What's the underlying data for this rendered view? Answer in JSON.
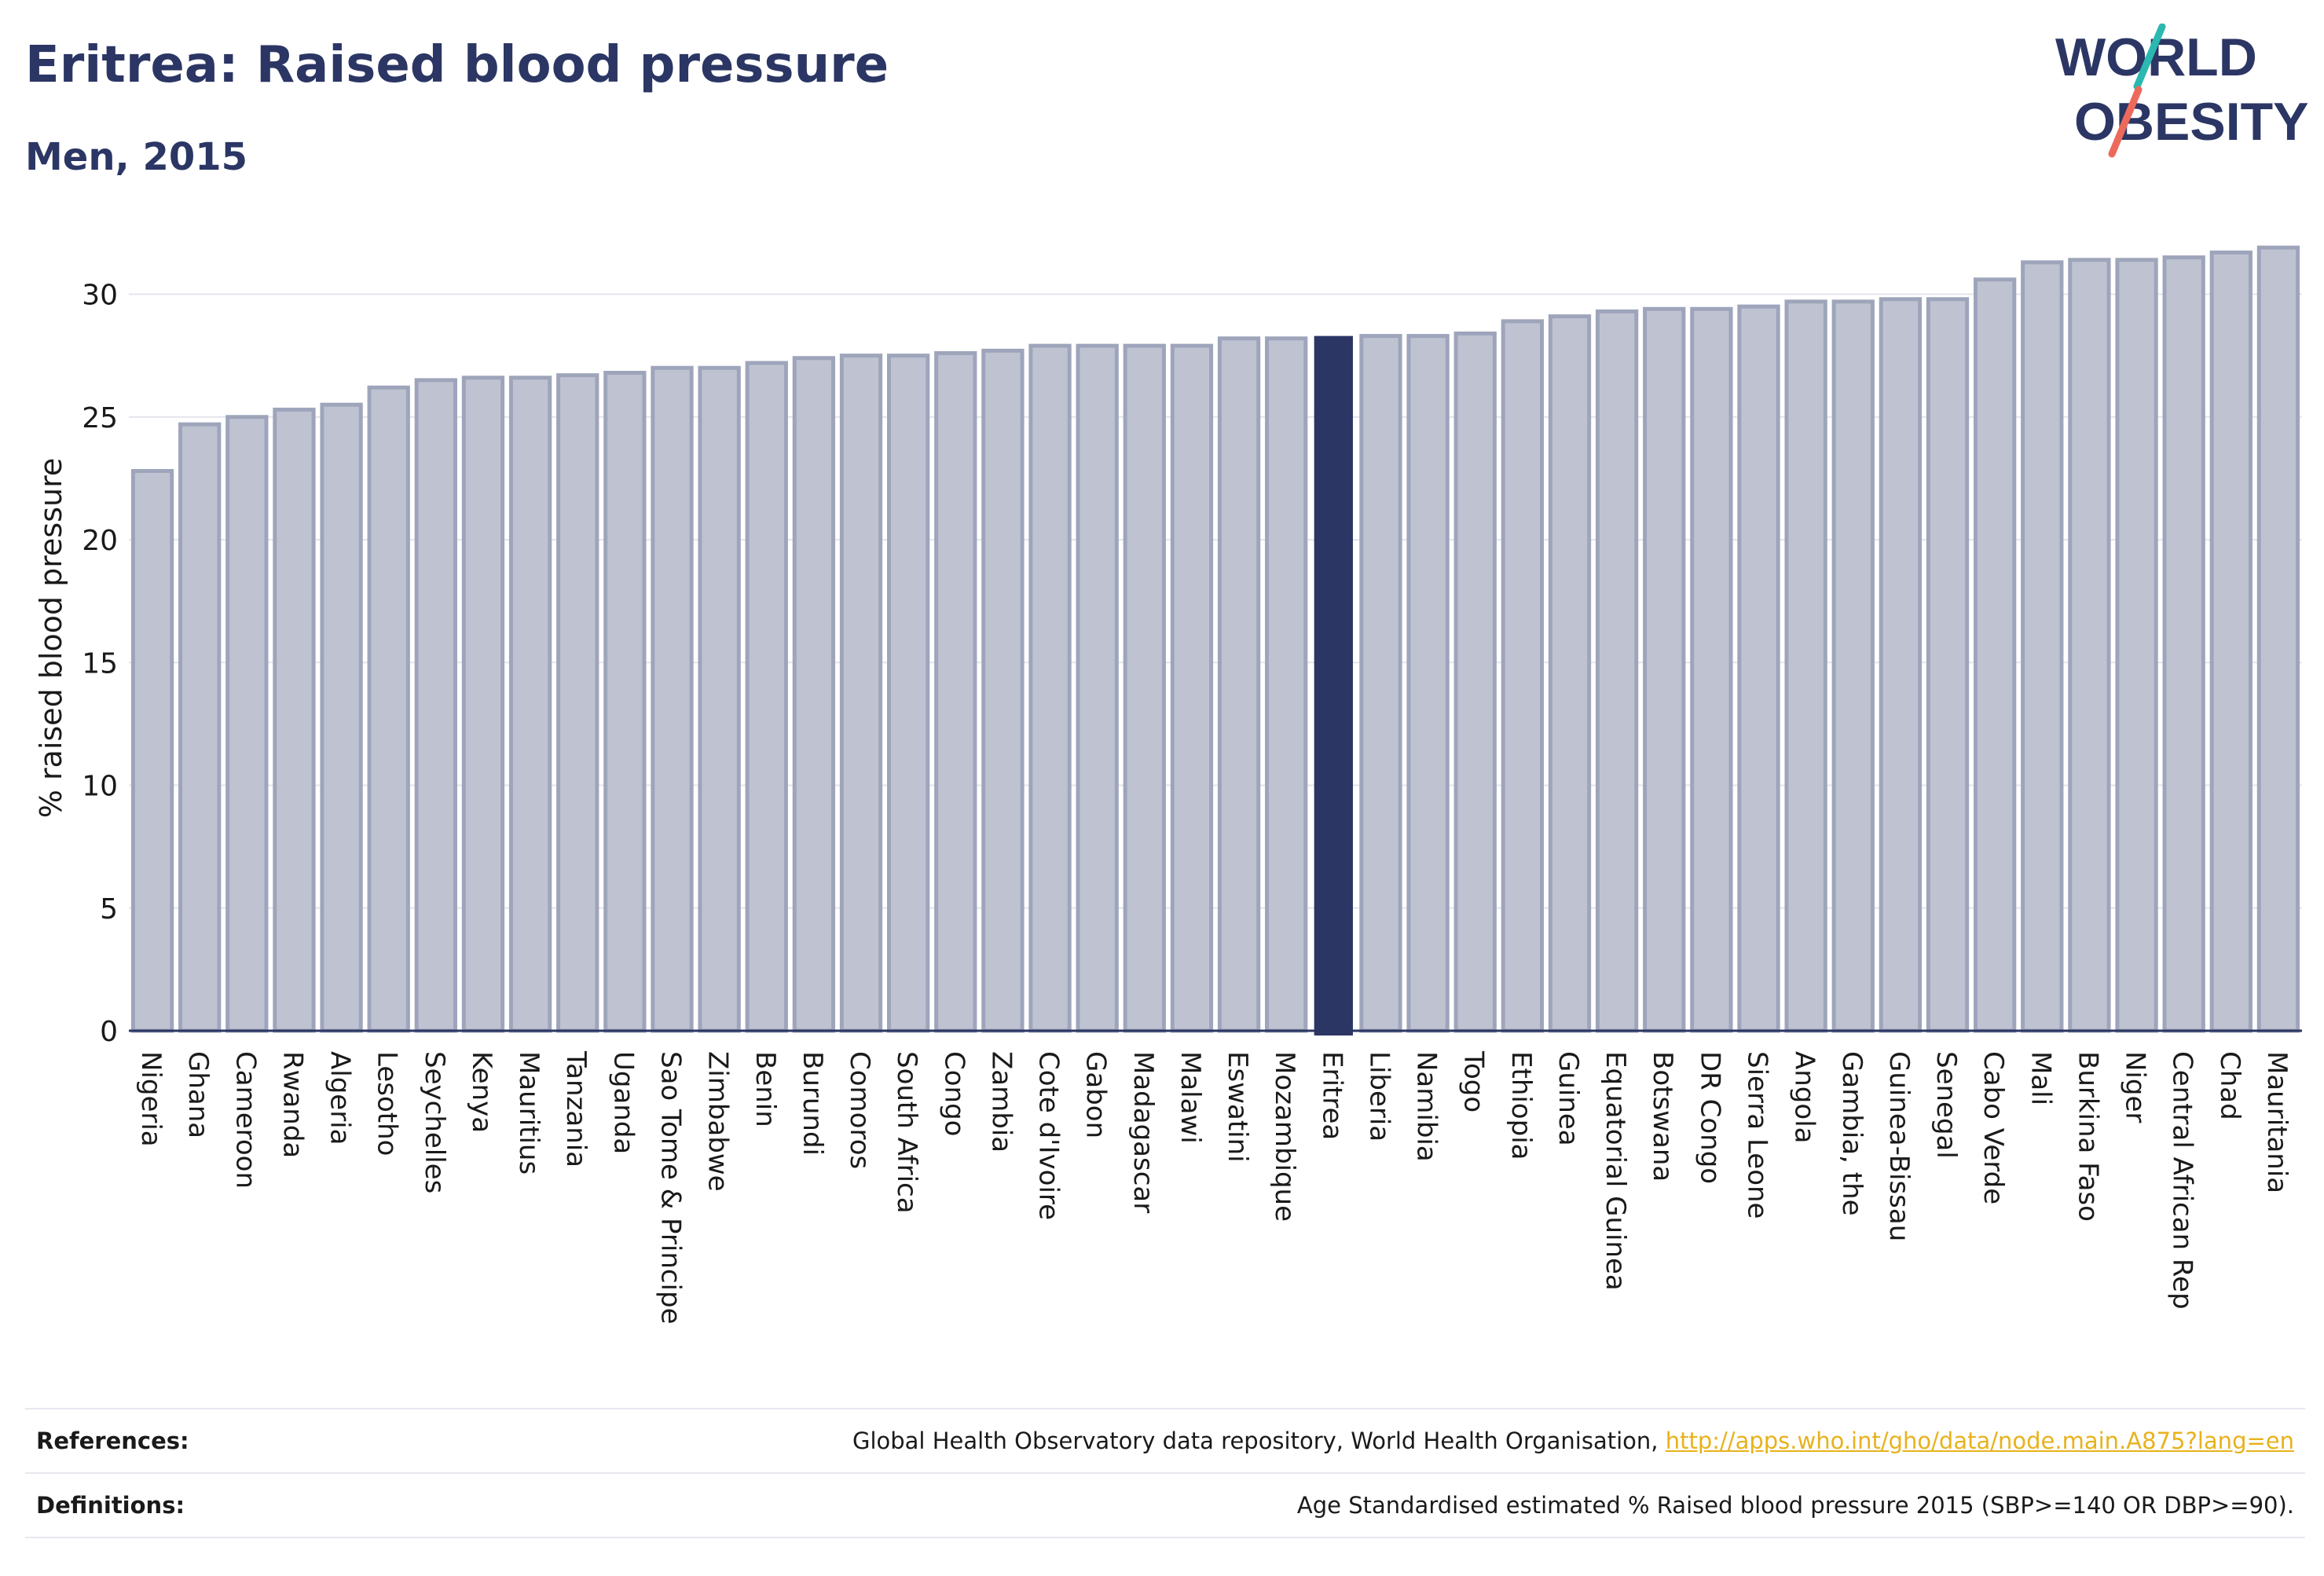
{
  "header": {
    "title": "Eritrea: Raised blood pressure",
    "subtitle": "Men, 2015"
  },
  "logo": {
    "line1": "WORLD",
    "line2": "OBESITY",
    "icon": "world-obesity-logo"
  },
  "chart_data": {
    "type": "bar",
    "ylabel": "% raised blood pressure",
    "ylim": [
      0,
      32
    ],
    "yticks": [
      0,
      5,
      10,
      15,
      20,
      25,
      30
    ],
    "grid": true,
    "highlight": "Eritrea",
    "colors": {
      "bar": "#bfc3d1",
      "bar_stroke": "#9ea5bb",
      "highlight": "#2b3664",
      "axis": "#2b3664",
      "grid": "#e3e5eb"
    },
    "categories": [
      "Nigeria",
      "Ghana",
      "Cameroon",
      "Rwanda",
      "Algeria",
      "Lesotho",
      "Seychelles",
      "Kenya",
      "Mauritius",
      "Tanzania",
      "Uganda",
      "Sao Tome & Principe",
      "Zimbabwe",
      "Benin",
      "Burundi",
      "Comoros",
      "South Africa",
      "Congo",
      "Zambia",
      "Cote d'Ivoire",
      "Gabon",
      "Madagascar",
      "Malawi",
      "Eswatini",
      "Mozambique",
      "Eritrea",
      "Liberia",
      "Namibia",
      "Togo",
      "Ethiopia",
      "Guinea",
      "Equatorial Guinea",
      "Botswana",
      "DR Congo",
      "Sierra Leone",
      "Angola",
      "Gambia, the",
      "Guinea-Bissau",
      "Senegal",
      "Cabo Verde",
      "Mali",
      "Burkina Faso",
      "Niger",
      "Central African Rep",
      "Chad",
      "Mauritania"
    ],
    "values": [
      22.8,
      24.7,
      25.0,
      25.3,
      25.5,
      26.2,
      26.5,
      26.6,
      26.6,
      26.7,
      26.8,
      27.0,
      27.0,
      27.2,
      27.4,
      27.5,
      27.5,
      27.6,
      27.7,
      27.9,
      27.9,
      27.9,
      27.9,
      28.2,
      28.2,
      28.3,
      28.3,
      28.3,
      28.4,
      28.9,
      29.1,
      29.3,
      29.4,
      29.4,
      29.5,
      29.7,
      29.7,
      29.8,
      29.8,
      30.6,
      31.3,
      31.4,
      31.4,
      31.5,
      31.7,
      31.9
    ]
  },
  "footer": {
    "references_label": "References:",
    "references_text": "Global Health Observatory data repository, World Health Organisation, ",
    "references_link": "http://apps.who.int/gho/data/node.main.A875?lang=en",
    "definitions_label": "Definitions:",
    "definitions_text": "Age Standardised estimated % Raised blood pressure 2015 (SBP>=140 OR DBP>=90)."
  }
}
